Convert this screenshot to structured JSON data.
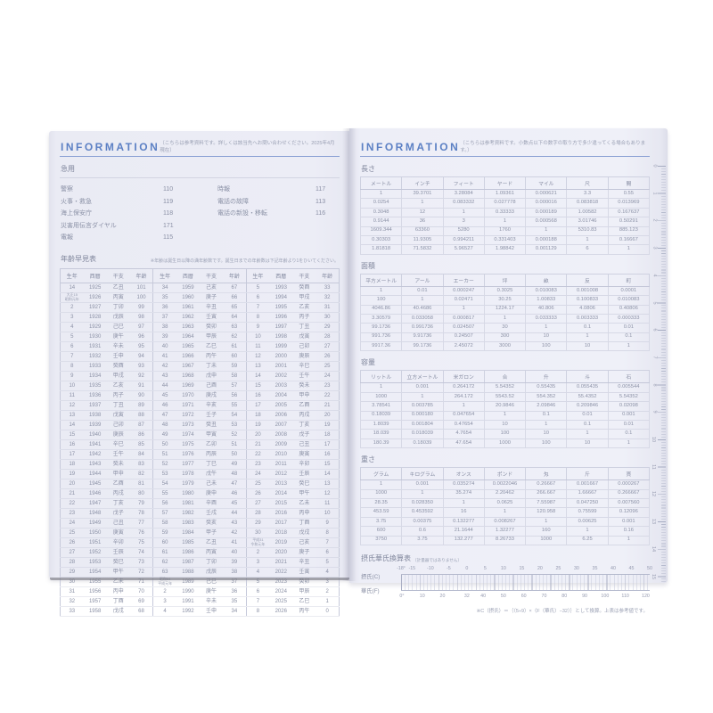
{
  "colors": {
    "accent_blue": "#5c80c4",
    "page_tint": "#ecedf6",
    "ink": "#8b91a6"
  },
  "left_page": {
    "header": {
      "title": "INFORMATION",
      "note": "〔こちらは参考資料です。詳しくは該当先へお問い合わせください。2025年4月現在〕"
    },
    "emergency": {
      "title": "急用",
      "items_left": [
        {
          "label": "警察",
          "value": "110"
        },
        {
          "label": "火事・救急",
          "value": "119"
        },
        {
          "label": "海上保安庁",
          "value": "118"
        },
        {
          "label": "災害用伝言ダイヤル",
          "value": "171"
        },
        {
          "label": "電報",
          "value": "115"
        }
      ],
      "items_right": [
        {
          "label": "時報",
          "value": "117"
        },
        {
          "label": "電話の故障",
          "value": "113"
        },
        {
          "label": "電話の新設・移転",
          "value": "116"
        }
      ]
    },
    "age_table": {
      "title": "年齢早見表",
      "note": "※年齢は誕生日以降の満年齢数です。誕生日までの年齢数は下記年齢より1をひいてください。",
      "column_headers": [
        "生年",
        "西暦",
        "干支",
        "年齢"
      ],
      "rows": [
        [
          "14",
          "1925",
          "乙丑",
          "101",
          "34",
          "1959",
          "己亥",
          "67",
          "5",
          "1993",
          "癸酉",
          "33"
        ],
        [
          "大正15\n昭和元年",
          "1926",
          "丙寅",
          "100",
          "35",
          "1960",
          "庚子",
          "66",
          "6",
          "1994",
          "甲戌",
          "32"
        ],
        [
          "2",
          "1927",
          "丁卯",
          "99",
          "36",
          "1961",
          "辛丑",
          "65",
          "7",
          "1995",
          "乙亥",
          "31"
        ],
        [
          "3",
          "1928",
          "戊辰",
          "98",
          "37",
          "1962",
          "壬寅",
          "64",
          "8",
          "1996",
          "丙子",
          "30"
        ],
        [
          "4",
          "1929",
          "己巳",
          "97",
          "38",
          "1963",
          "癸卯",
          "63",
          "9",
          "1997",
          "丁丑",
          "29"
        ],
        [
          "5",
          "1930",
          "庚午",
          "96",
          "39",
          "1964",
          "甲辰",
          "62",
          "10",
          "1998",
          "戊寅",
          "28"
        ],
        [
          "6",
          "1931",
          "辛未",
          "95",
          "40",
          "1965",
          "乙巳",
          "61",
          "11",
          "1999",
          "己卯",
          "27"
        ],
        [
          "7",
          "1932",
          "壬申",
          "94",
          "41",
          "1966",
          "丙午",
          "60",
          "12",
          "2000",
          "庚辰",
          "26"
        ],
        [
          "8",
          "1933",
          "癸酉",
          "93",
          "42",
          "1967",
          "丁未",
          "59",
          "13",
          "2001",
          "辛巳",
          "25"
        ],
        [
          "9",
          "1934",
          "甲戌",
          "92",
          "43",
          "1968",
          "戊申",
          "58",
          "14",
          "2002",
          "壬午",
          "24"
        ],
        [
          "10",
          "1935",
          "乙亥",
          "91",
          "44",
          "1969",
          "己酉",
          "57",
          "15",
          "2003",
          "癸未",
          "23"
        ],
        [
          "11",
          "1936",
          "丙子",
          "90",
          "45",
          "1970",
          "庚戌",
          "56",
          "16",
          "2004",
          "甲申",
          "22"
        ],
        [
          "12",
          "1937",
          "丁丑",
          "89",
          "46",
          "1971",
          "辛亥",
          "55",
          "17",
          "2005",
          "乙酉",
          "21"
        ],
        [
          "13",
          "1938",
          "戊寅",
          "88",
          "47",
          "1972",
          "壬子",
          "54",
          "18",
          "2006",
          "丙戌",
          "20"
        ],
        [
          "14",
          "1939",
          "己卯",
          "87",
          "48",
          "1973",
          "癸丑",
          "53",
          "19",
          "2007",
          "丁亥",
          "19"
        ],
        [
          "15",
          "1940",
          "庚辰",
          "86",
          "49",
          "1974",
          "甲寅",
          "52",
          "20",
          "2008",
          "戊子",
          "18"
        ],
        [
          "16",
          "1941",
          "辛巳",
          "85",
          "50",
          "1975",
          "乙卯",
          "51",
          "21",
          "2009",
          "己丑",
          "17"
        ],
        [
          "17",
          "1942",
          "壬午",
          "84",
          "51",
          "1976",
          "丙辰",
          "50",
          "22",
          "2010",
          "庚寅",
          "16"
        ],
        [
          "18",
          "1943",
          "癸未",
          "83",
          "52",
          "1977",
          "丁巳",
          "49",
          "23",
          "2011",
          "辛卯",
          "15"
        ],
        [
          "19",
          "1944",
          "甲申",
          "82",
          "53",
          "1978",
          "戊午",
          "48",
          "24",
          "2012",
          "壬辰",
          "14"
        ],
        [
          "20",
          "1945",
          "乙酉",
          "81",
          "54",
          "1979",
          "己未",
          "47",
          "25",
          "2013",
          "癸巳",
          "13"
        ],
        [
          "21",
          "1946",
          "丙戌",
          "80",
          "55",
          "1980",
          "庚申",
          "46",
          "26",
          "2014",
          "甲午",
          "12"
        ],
        [
          "22",
          "1947",
          "丁亥",
          "79",
          "56",
          "1981",
          "辛酉",
          "45",
          "27",
          "2015",
          "乙未",
          "11"
        ],
        [
          "23",
          "1948",
          "戊子",
          "78",
          "57",
          "1982",
          "壬戌",
          "44",
          "28",
          "2016",
          "丙申",
          "10"
        ],
        [
          "24",
          "1949",
          "己丑",
          "77",
          "58",
          "1983",
          "癸亥",
          "43",
          "29",
          "2017",
          "丁酉",
          "9"
        ],
        [
          "25",
          "1950",
          "庚寅",
          "76",
          "59",
          "1984",
          "甲子",
          "42",
          "30",
          "2018",
          "戊戌",
          "8"
        ],
        [
          "26",
          "1951",
          "辛卯",
          "75",
          "60",
          "1985",
          "乙丑",
          "41",
          "平成31\n令和元年",
          "2019",
          "己亥",
          "7"
        ],
        [
          "27",
          "1952",
          "壬辰",
          "74",
          "61",
          "1986",
          "丙寅",
          "40",
          "2",
          "2020",
          "庚子",
          "6"
        ],
        [
          "28",
          "1953",
          "癸巳",
          "73",
          "62",
          "1987",
          "丁卯",
          "39",
          "3",
          "2021",
          "辛丑",
          "5"
        ],
        [
          "29",
          "1954",
          "甲午",
          "72",
          "63",
          "1988",
          "戊辰",
          "38",
          "4",
          "2022",
          "壬寅",
          "4"
        ],
        [
          "30",
          "1955",
          "乙未",
          "71",
          "昭和64\n平成元年",
          "1989",
          "己巳",
          "37",
          "5",
          "2023",
          "癸卯",
          "3"
        ],
        [
          "31",
          "1956",
          "丙申",
          "70",
          "2",
          "1990",
          "庚午",
          "36",
          "6",
          "2024",
          "甲辰",
          "2"
        ],
        [
          "32",
          "1957",
          "丁酉",
          "69",
          "3",
          "1991",
          "辛未",
          "35",
          "7",
          "2025",
          "乙巳",
          "1"
        ],
        [
          "33",
          "1958",
          "戊戌",
          "68",
          "4",
          "1992",
          "壬申",
          "34",
          "8",
          "2026",
          "丙午",
          "0"
        ]
      ]
    }
  },
  "right_page": {
    "header": {
      "title": "INFORMATION",
      "note": "〔こちらは参考資料です。小数点以下の数字の取り方で多少違ってくる場合もあります。〕"
    },
    "conversion_tables": [
      {
        "title": "長さ",
        "headers": [
          "メートル",
          "インチ",
          "フィート",
          "ヤード",
          "マイル",
          "尺",
          "間"
        ],
        "rows": [
          [
            "1",
            "39.3701",
            "3.28084",
            "1.09361",
            "0.000621",
            "3.3",
            "0.55"
          ],
          [
            "0.0254",
            "1",
            "0.083332",
            "0.027778",
            "0.000016",
            "0.083818",
            "0.013969"
          ],
          [
            "0.3048",
            "12",
            "1",
            "0.33333",
            "0.000189",
            "1.00582",
            "0.167637"
          ],
          [
            "0.9144",
            "36",
            "3",
            "1",
            "0.000568",
            "3.01746",
            "0.50291"
          ],
          [
            "1609.344",
            "63360",
            "5280",
            "1760",
            "1",
            "5310.83",
            "885.123"
          ],
          [
            "0.30303",
            "11.9305",
            "0.994211",
            "0.331403",
            "0.000188",
            "1",
            "0.16667"
          ],
          [
            "1.81818",
            "71.5832",
            "5.96527",
            "1.98842",
            "0.001129",
            "6",
            "1"
          ]
        ]
      },
      {
        "title": "面積",
        "headers": [
          "平方メートル",
          "アール",
          "エーカー",
          "坪",
          "畝",
          "反",
          "町"
        ],
        "rows": [
          [
            "1",
            "0.01",
            "0.000247",
            "0.3025",
            "0.010083",
            "0.001008",
            "0.0001"
          ],
          [
            "100",
            "1",
            "0.02471",
            "30.25",
            "1.00833",
            "0.100833",
            "0.010083"
          ],
          [
            "4046.86",
            "40.4686",
            "1",
            "1224.17",
            "40.806",
            "4.0806",
            "0.40806"
          ],
          [
            "3.30579",
            "0.033058",
            "0.000817",
            "1",
            "0.033333",
            "0.003333",
            "0.000333"
          ],
          [
            "99.1736",
            "0.991736",
            "0.024507",
            "30",
            "1",
            "0.1",
            "0.01"
          ],
          [
            "991.736",
            "9.91736",
            "0.24507",
            "300",
            "10",
            "1",
            "0.1"
          ],
          [
            "9917.36",
            "99.1736",
            "2.45072",
            "3000",
            "100",
            "10",
            "1"
          ]
        ]
      },
      {
        "title": "容量",
        "headers": [
          "リットル",
          "立方メートル",
          "米ガロン",
          "合",
          "升",
          "斗",
          "石"
        ],
        "rows": [
          [
            "1",
            "0.001",
            "0.264172",
            "5.54352",
            "0.55435",
            "0.055435",
            "0.005544"
          ],
          [
            "1000",
            "1",
            "264.172",
            "5543.52",
            "554.352",
            "55.4352",
            "5.54352"
          ],
          [
            "3.78541",
            "0.003785",
            "1",
            "20.9846",
            "2.09846",
            "0.209846",
            "0.02098"
          ],
          [
            "0.18039",
            "0.000180",
            "0.047654",
            "1",
            "0.1",
            "0.01",
            "0.001"
          ],
          [
            "1.8039",
            "0.001804",
            "0.47654",
            "10",
            "1",
            "0.1",
            "0.01"
          ],
          [
            "18.039",
            "0.018039",
            "4.7654",
            "100",
            "10",
            "1",
            "0.1"
          ],
          [
            "180.39",
            "0.18039",
            "47.654",
            "1000",
            "100",
            "10",
            "1"
          ]
        ]
      },
      {
        "title": "重さ",
        "headers": [
          "グラム",
          "キログラム",
          "オンス",
          "ポンド",
          "匁",
          "斤",
          "貫"
        ],
        "rows": [
          [
            "1",
            "0.001",
            "0.035274",
            "0.0022046",
            "0.26667",
            "0.001667",
            "0.000267"
          ],
          [
            "1000",
            "1",
            "35.274",
            "2.20462",
            "266.667",
            "1.66667",
            "0.266667"
          ],
          [
            "28.35",
            "0.028350",
            "1",
            "0.0625",
            "7.55987",
            "0.047250",
            "0.007560"
          ],
          [
            "453.59",
            "0.453592",
            "16",
            "1",
            "120.958",
            "0.75599",
            "0.12096"
          ],
          [
            "3.75",
            "0.00375",
            "0.132277",
            "0.008267",
            "1",
            "0.00625",
            "0.001"
          ],
          [
            "600",
            "0.6",
            "21.1644",
            "1.32277",
            "160",
            "1",
            "0.16"
          ],
          [
            "3750",
            "3.75",
            "132.277",
            "8.26733",
            "1000",
            "6.25",
            "1"
          ]
        ]
      }
    ],
    "temperature": {
      "title": "摂氏華氏換算表",
      "title_note": "〔計量器ではありません〕",
      "celsius_label": "摂氏(C)",
      "fahrenheit_label": "華氏(F)",
      "celsius_ticks": [
        "-18°",
        "-15",
        "-10",
        "-5",
        "0",
        "5",
        "10",
        "15",
        "20",
        "25",
        "30",
        "35",
        "40",
        "45",
        "50"
      ],
      "fahrenheit_ticks": [
        "0°",
        "10",
        "20",
        "32",
        "40",
        "50",
        "60",
        "70",
        "80",
        "90",
        "100",
        "110",
        "120"
      ],
      "range_c": [
        -18,
        50
      ],
      "note": "※C（摂氏）＝｛（5÷9）×（F（華氏）−32）｝として換算。上表は参考値です。"
    },
    "ruler": {
      "numbers": [
        "0",
        "1",
        "2",
        "3",
        "4",
        "5",
        "6",
        "7",
        "8",
        "9",
        "10",
        "11",
        "12",
        "13",
        "14",
        "15"
      ]
    }
  }
}
